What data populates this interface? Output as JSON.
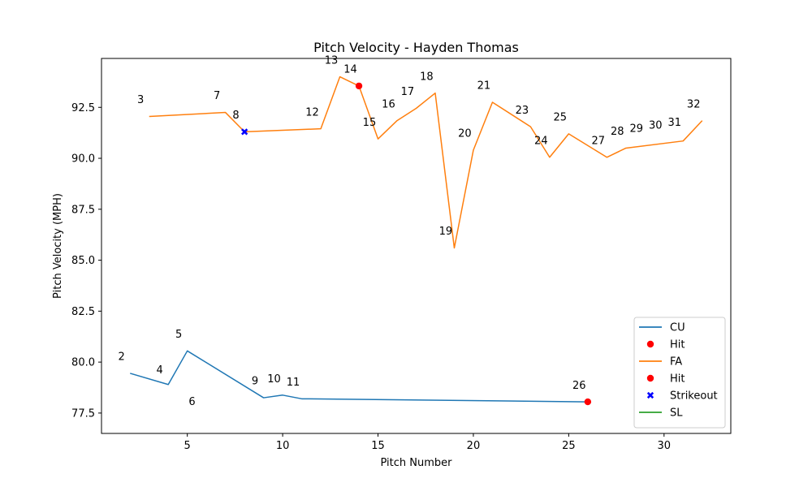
{
  "chart_data": {
    "type": "line",
    "title": "Pitch Velocity - Hayden Thomas",
    "xlabel": "Pitch Number",
    "ylabel": "Pitch Velocity (MPH)",
    "xlim": [
      0.5,
      33.5
    ],
    "ylim": [
      76.5,
      94.9
    ],
    "xticks": [
      5,
      10,
      15,
      20,
      25,
      30
    ],
    "yticks": [
      77.5,
      80.0,
      82.5,
      85.0,
      87.5,
      90.0,
      92.5
    ],
    "xtick_labels": [
      "5",
      "10",
      "15",
      "20",
      "25",
      "30"
    ],
    "ytick_labels": [
      "77.5",
      "80.0",
      "82.5",
      "85.0",
      "87.5",
      "90.0",
      "92.5"
    ],
    "grid": false,
    "legend_position": "lower-right",
    "series": [
      {
        "name": "CU",
        "color": "#1f77b4",
        "points": [
          {
            "x": 2,
            "y": 79.45
          },
          {
            "x": 4,
            "y": 78.9
          },
          {
            "x": 5,
            "y": 80.55
          },
          {
            "x": 9,
            "y": 78.25
          },
          {
            "x": 10,
            "y": 78.38
          },
          {
            "x": 11,
            "y": 78.2
          },
          {
            "x": 26,
            "y": 78.05
          }
        ]
      },
      {
        "name": "FA",
        "color": "#ff7f0e",
        "points": [
          {
            "x": 3,
            "y": 92.05
          },
          {
            "x": 7,
            "y": 92.25
          },
          {
            "x": 8,
            "y": 91.3
          },
          {
            "x": 12,
            "y": 91.45
          },
          {
            "x": 13,
            "y": 94.0
          },
          {
            "x": 14,
            "y": 93.55
          },
          {
            "x": 15,
            "y": 90.95
          },
          {
            "x": 16,
            "y": 91.85
          },
          {
            "x": 17,
            "y": 92.45
          },
          {
            "x": 18,
            "y": 93.2
          },
          {
            "x": 19,
            "y": 85.6
          },
          {
            "x": 20,
            "y": 90.4
          },
          {
            "x": 21,
            "y": 92.75
          },
          {
            "x": 23,
            "y": 91.55
          },
          {
            "x": 24,
            "y": 90.05
          },
          {
            "x": 25,
            "y": 91.2
          },
          {
            "x": 27,
            "y": 90.05
          },
          {
            "x": 28,
            "y": 90.5
          },
          {
            "x": 31,
            "y": 90.85
          },
          {
            "x": 32,
            "y": 91.85
          }
        ]
      },
      {
        "name": "SL",
        "color": "#2ca02c",
        "points": []
      }
    ],
    "markers": [
      {
        "type": "Hit",
        "x": 14,
        "y": 93.55,
        "color": "#ff0000",
        "shape": "circle"
      },
      {
        "type": "Hit",
        "x": 26,
        "y": 78.05,
        "color": "#ff0000",
        "shape": "circle"
      },
      {
        "type": "Strikeout",
        "x": 8,
        "y": 91.3,
        "color": "#0000ff",
        "shape": "x"
      }
    ],
    "annotations": [
      {
        "label": "2",
        "x": 1.55,
        "y": 80.1
      },
      {
        "label": "3",
        "x": 2.55,
        "y": 92.7
      },
      {
        "label": "4",
        "x": 3.55,
        "y": 79.45
      },
      {
        "label": "5",
        "x": 4.55,
        "y": 81.2
      },
      {
        "label": "6",
        "x": 5.25,
        "y": 77.9
      },
      {
        "label": "7",
        "x": 6.55,
        "y": 92.9
      },
      {
        "label": "8",
        "x": 7.55,
        "y": 91.95
      },
      {
        "label": "9",
        "x": 8.55,
        "y": 78.9
      },
      {
        "label": "10",
        "x": 9.55,
        "y": 79.0
      },
      {
        "label": "11",
        "x": 10.55,
        "y": 78.85
      },
      {
        "label": "12",
        "x": 11.55,
        "y": 92.1
      },
      {
        "label": "13",
        "x": 12.55,
        "y": 94.65
      },
      {
        "label": "14",
        "x": 13.55,
        "y": 94.2
      },
      {
        "label": "15",
        "x": 14.55,
        "y": 91.6
      },
      {
        "label": "16",
        "x": 15.55,
        "y": 92.5
      },
      {
        "label": "17",
        "x": 16.55,
        "y": 93.1
      },
      {
        "label": "18",
        "x": 17.55,
        "y": 93.85
      },
      {
        "label": "19",
        "x": 18.55,
        "y": 86.25
      },
      {
        "label": "20",
        "x": 19.55,
        "y": 91.05
      },
      {
        "label": "21",
        "x": 20.55,
        "y": 93.4
      },
      {
        "label": "23",
        "x": 22.55,
        "y": 92.2
      },
      {
        "label": "24",
        "x": 23.55,
        "y": 90.7
      },
      {
        "label": "25",
        "x": 24.55,
        "y": 91.85
      },
      {
        "label": "26",
        "x": 25.55,
        "y": 78.7
      },
      {
        "label": "27",
        "x": 26.55,
        "y": 90.7
      },
      {
        "label": "28",
        "x": 27.55,
        "y": 91.15
      },
      {
        "label": "29",
        "x": 28.55,
        "y": 91.3
      },
      {
        "label": "30",
        "x": 29.55,
        "y": 91.45
      },
      {
        "label": "31",
        "x": 30.55,
        "y": 91.6
      },
      {
        "label": "32",
        "x": 31.55,
        "y": 92.5
      }
    ],
    "legend": [
      {
        "label": "CU",
        "kind": "line",
        "color": "#1f77b4"
      },
      {
        "label": "Hit",
        "kind": "circle",
        "color": "#ff0000"
      },
      {
        "label": "FA",
        "kind": "line",
        "color": "#ff7f0e"
      },
      {
        "label": "Hit",
        "kind": "circle",
        "color": "#ff0000"
      },
      {
        "label": "Strikeout",
        "kind": "x",
        "color": "#0000ff"
      },
      {
        "label": "SL",
        "kind": "line",
        "color": "#2ca02c"
      }
    ]
  }
}
